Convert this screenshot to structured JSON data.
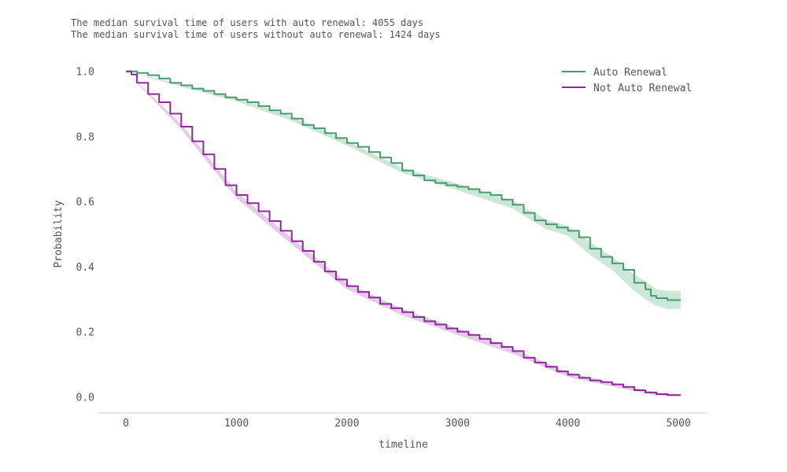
{
  "annotations": {
    "line1": "The median survival time of users with auto renewal: 4055 days",
    "line2": "The median survival time of users without auto renewal: 1424 days"
  },
  "chart_data": {
    "type": "line",
    "xlabel": "timeline",
    "ylabel": "Probability",
    "xlim": [
      -250,
      5270
    ],
    "ylim": [
      -0.05,
      1.05
    ],
    "xticks": [
      0,
      1000,
      2000,
      3000,
      4000,
      5000
    ],
    "yticks": [
      0.0,
      0.2,
      0.4,
      0.6,
      0.8,
      1.0
    ],
    "xtick_labels": [
      "0",
      "1000",
      "2000",
      "3000",
      "4000",
      "5000"
    ],
    "ytick_labels": [
      "0.0",
      "0.2",
      "0.4",
      "0.6",
      "0.8",
      "1.0"
    ],
    "grid": false,
    "legend_position": "top-right",
    "series": [
      {
        "name": "Auto Renewal",
        "color": "#4a9a6e",
        "band_color": "#9fd4b6",
        "points": [
          [
            0,
            1.0
          ],
          [
            100,
            0.995
          ],
          [
            200,
            0.988
          ],
          [
            300,
            0.978
          ],
          [
            400,
            0.965
          ],
          [
            500,
            0.957
          ],
          [
            600,
            0.947
          ],
          [
            700,
            0.94
          ],
          [
            800,
            0.93
          ],
          [
            900,
            0.92
          ],
          [
            1000,
            0.913
          ],
          [
            1100,
            0.905
          ],
          [
            1200,
            0.893
          ],
          [
            1300,
            0.88
          ],
          [
            1400,
            0.87
          ],
          [
            1500,
            0.855
          ],
          [
            1600,
            0.835
          ],
          [
            1700,
            0.825
          ],
          [
            1800,
            0.81
          ],
          [
            1900,
            0.795
          ],
          [
            2000,
            0.78
          ],
          [
            2100,
            0.768
          ],
          [
            2200,
            0.752
          ],
          [
            2300,
            0.735
          ],
          [
            2400,
            0.718
          ],
          [
            2500,
            0.695
          ],
          [
            2600,
            0.68
          ],
          [
            2700,
            0.665
          ],
          [
            2800,
            0.657
          ],
          [
            2900,
            0.65
          ],
          [
            3000,
            0.645
          ],
          [
            3100,
            0.638
          ],
          [
            3200,
            0.628
          ],
          [
            3300,
            0.62
          ],
          [
            3400,
            0.606
          ],
          [
            3500,
            0.59
          ],
          [
            3600,
            0.565
          ],
          [
            3700,
            0.542
          ],
          [
            3800,
            0.53
          ],
          [
            3900,
            0.52
          ],
          [
            4000,
            0.51
          ],
          [
            4100,
            0.49
          ],
          [
            4200,
            0.455
          ],
          [
            4300,
            0.43
          ],
          [
            4400,
            0.41
          ],
          [
            4500,
            0.39
          ],
          [
            4600,
            0.35
          ],
          [
            4700,
            0.33
          ],
          [
            4750,
            0.31
          ],
          [
            4800,
            0.303
          ],
          [
            4900,
            0.297
          ],
          [
            5020,
            0.297
          ]
        ],
        "ci_upper": [
          [
            0,
            1.0
          ],
          [
            500,
            0.96
          ],
          [
            1000,
            0.918
          ],
          [
            1500,
            0.862
          ],
          [
            2000,
            0.787
          ],
          [
            2500,
            0.703
          ],
          [
            3000,
            0.655
          ],
          [
            3500,
            0.602
          ],
          [
            3800,
            0.545
          ],
          [
            4000,
            0.525
          ],
          [
            4200,
            0.475
          ],
          [
            4400,
            0.43
          ],
          [
            4600,
            0.375
          ],
          [
            4700,
            0.355
          ],
          [
            4800,
            0.33
          ],
          [
            4900,
            0.325
          ],
          [
            5020,
            0.325
          ]
        ],
        "ci_lower": [
          [
            0,
            1.0
          ],
          [
            500,
            0.953
          ],
          [
            1000,
            0.908
          ],
          [
            1500,
            0.848
          ],
          [
            2000,
            0.772
          ],
          [
            2500,
            0.688
          ],
          [
            3000,
            0.635
          ],
          [
            3500,
            0.578
          ],
          [
            3800,
            0.515
          ],
          [
            4000,
            0.495
          ],
          [
            4200,
            0.435
          ],
          [
            4400,
            0.39
          ],
          [
            4600,
            0.325
          ],
          [
            4700,
            0.3
          ],
          [
            4800,
            0.28
          ],
          [
            4900,
            0.27
          ],
          [
            5020,
            0.27
          ]
        ]
      },
      {
        "name": "Not Auto Renewal",
        "color": "#8b2c96",
        "band_color": "#cda3d6",
        "points": [
          [
            0,
            1.0
          ],
          [
            50,
            0.99
          ],
          [
            100,
            0.965
          ],
          [
            200,
            0.93
          ],
          [
            300,
            0.905
          ],
          [
            400,
            0.87
          ],
          [
            500,
            0.83
          ],
          [
            600,
            0.785
          ],
          [
            700,
            0.745
          ],
          [
            800,
            0.7
          ],
          [
            900,
            0.65
          ],
          [
            1000,
            0.62
          ],
          [
            1100,
            0.595
          ],
          [
            1200,
            0.57
          ],
          [
            1300,
            0.54
          ],
          [
            1400,
            0.51
          ],
          [
            1500,
            0.478
          ],
          [
            1600,
            0.448
          ],
          [
            1700,
            0.415
          ],
          [
            1800,
            0.385
          ],
          [
            1900,
            0.36
          ],
          [
            2000,
            0.34
          ],
          [
            2100,
            0.322
          ],
          [
            2200,
            0.305
          ],
          [
            2300,
            0.285
          ],
          [
            2400,
            0.272
          ],
          [
            2500,
            0.26
          ],
          [
            2600,
            0.245
          ],
          [
            2700,
            0.232
          ],
          [
            2800,
            0.222
          ],
          [
            2900,
            0.21
          ],
          [
            3000,
            0.2
          ],
          [
            3100,
            0.19
          ],
          [
            3200,
            0.178
          ],
          [
            3300,
            0.165
          ],
          [
            3400,
            0.153
          ],
          [
            3500,
            0.14
          ],
          [
            3600,
            0.12
          ],
          [
            3700,
            0.105
          ],
          [
            3800,
            0.092
          ],
          [
            3900,
            0.078
          ],
          [
            4000,
            0.068
          ],
          [
            4100,
            0.058
          ],
          [
            4200,
            0.05
          ],
          [
            4300,
            0.045
          ],
          [
            4400,
            0.038
          ],
          [
            4500,
            0.03
          ],
          [
            4600,
            0.02
          ],
          [
            4700,
            0.013
          ],
          [
            4800,
            0.008
          ],
          [
            4900,
            0.005
          ],
          [
            5020,
            0.005
          ]
        ],
        "ci_upper": [
          [
            0,
            1.0
          ],
          [
            500,
            0.838
          ],
          [
            1000,
            0.63
          ],
          [
            1500,
            0.488
          ],
          [
            2000,
            0.35
          ],
          [
            2500,
            0.27
          ],
          [
            3000,
            0.21
          ],
          [
            3500,
            0.148
          ],
          [
            4000,
            0.075
          ],
          [
            4500,
            0.036
          ],
          [
            4800,
            0.012
          ],
          [
            5020,
            0.008
          ]
        ],
        "ci_lower": [
          [
            0,
            1.0
          ],
          [
            500,
            0.822
          ],
          [
            1000,
            0.61
          ],
          [
            1500,
            0.468
          ],
          [
            2000,
            0.33
          ],
          [
            2500,
            0.25
          ],
          [
            3000,
            0.19
          ],
          [
            3500,
            0.132
          ],
          [
            4000,
            0.061
          ],
          [
            4500,
            0.024
          ],
          [
            4800,
            0.004
          ],
          [
            5020,
            0.002
          ]
        ]
      }
    ]
  }
}
